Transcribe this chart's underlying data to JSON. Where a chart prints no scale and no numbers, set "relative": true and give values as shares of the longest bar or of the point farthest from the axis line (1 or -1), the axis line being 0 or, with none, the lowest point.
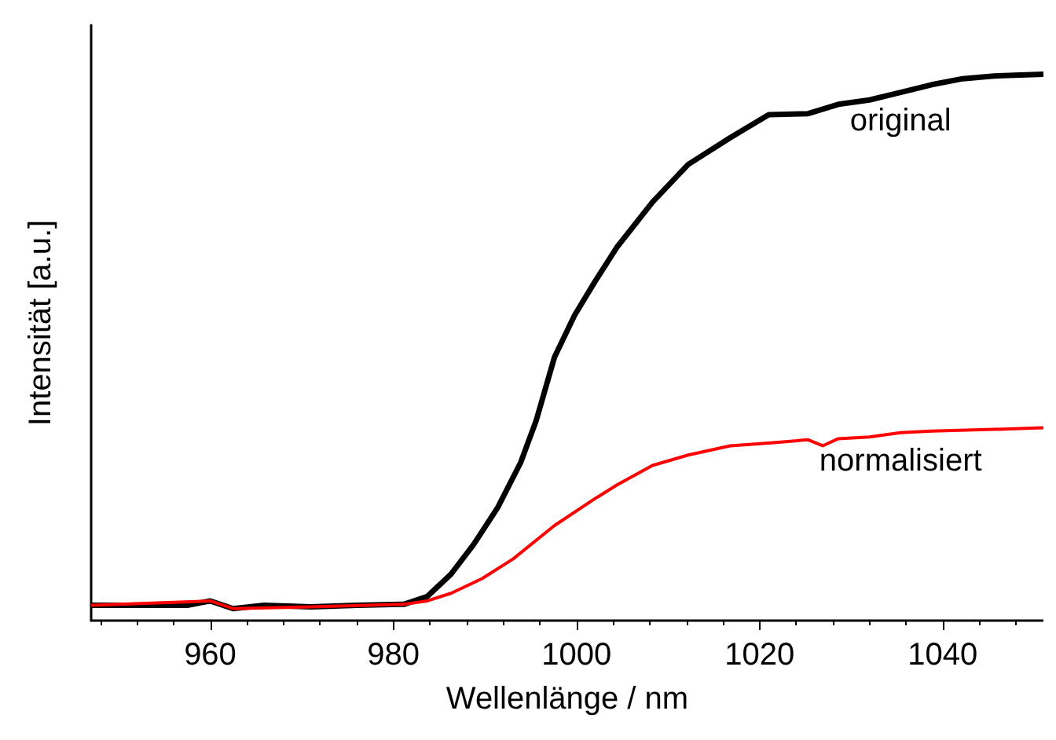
{
  "chart_data": {
    "type": "line",
    "xlabel": "Wellenlänge / nm",
    "ylabel": "Intensität [a.u.]",
    "relative": true,
    "xlim": [
      947,
      1051
    ],
    "xticks": [
      960,
      980,
      1000,
      1020,
      1040
    ],
    "grid": false,
    "legend": false,
    "marker": "none",
    "line_style": "solid",
    "series": [
      {
        "name": "original",
        "color": "#000000",
        "x": [
          947,
          954.1,
          957.5,
          960,
          962.5,
          965.9,
          971,
          976.1,
          981.2,
          983.7,
          986.3,
          988.8,
          991.4,
          993.9,
          995.6,
          997.6,
          999.8,
          1002,
          1004.4,
          1008.3,
          1012.2,
          1016.8,
          1021,
          1025.3,
          1028.6,
          1032,
          1035.4,
          1038.8,
          1042.2,
          1045.6,
          1051
        ],
        "values": [
          0.028,
          0.028,
          0.028,
          0.036,
          0.022,
          0.028,
          0.025,
          0.028,
          0.03,
          0.044,
          0.085,
          0.14,
          0.207,
          0.289,
          0.366,
          0.482,
          0.559,
          0.62,
          0.683,
          0.766,
          0.835,
          0.884,
          0.926,
          0.928,
          0.945,
          0.953,
          0.967,
          0.981,
          0.992,
          0.997,
          1
        ]
      },
      {
        "name": "normalisiert",
        "color": "#ff0000",
        "x": [
          947,
          960,
          962.5,
          971,
          981.2,
          983.7,
          986.3,
          989.7,
          993.1,
          997.6,
          1002,
          1004.4,
          1008.3,
          1012.2,
          1016.8,
          1021,
          1025.3,
          1026.9,
          1028.6,
          1032,
          1035.4,
          1038.8,
          1045.6,
          1051
        ],
        "values": [
          0.028,
          0.036,
          0.022,
          0.025,
          0.03,
          0.036,
          0.05,
          0.077,
          0.113,
          0.174,
          0.223,
          0.248,
          0.284,
          0.303,
          0.32,
          0.325,
          0.331,
          0.32,
          0.333,
          0.336,
          0.344,
          0.347,
          0.35,
          0.353
        ]
      }
    ]
  }
}
